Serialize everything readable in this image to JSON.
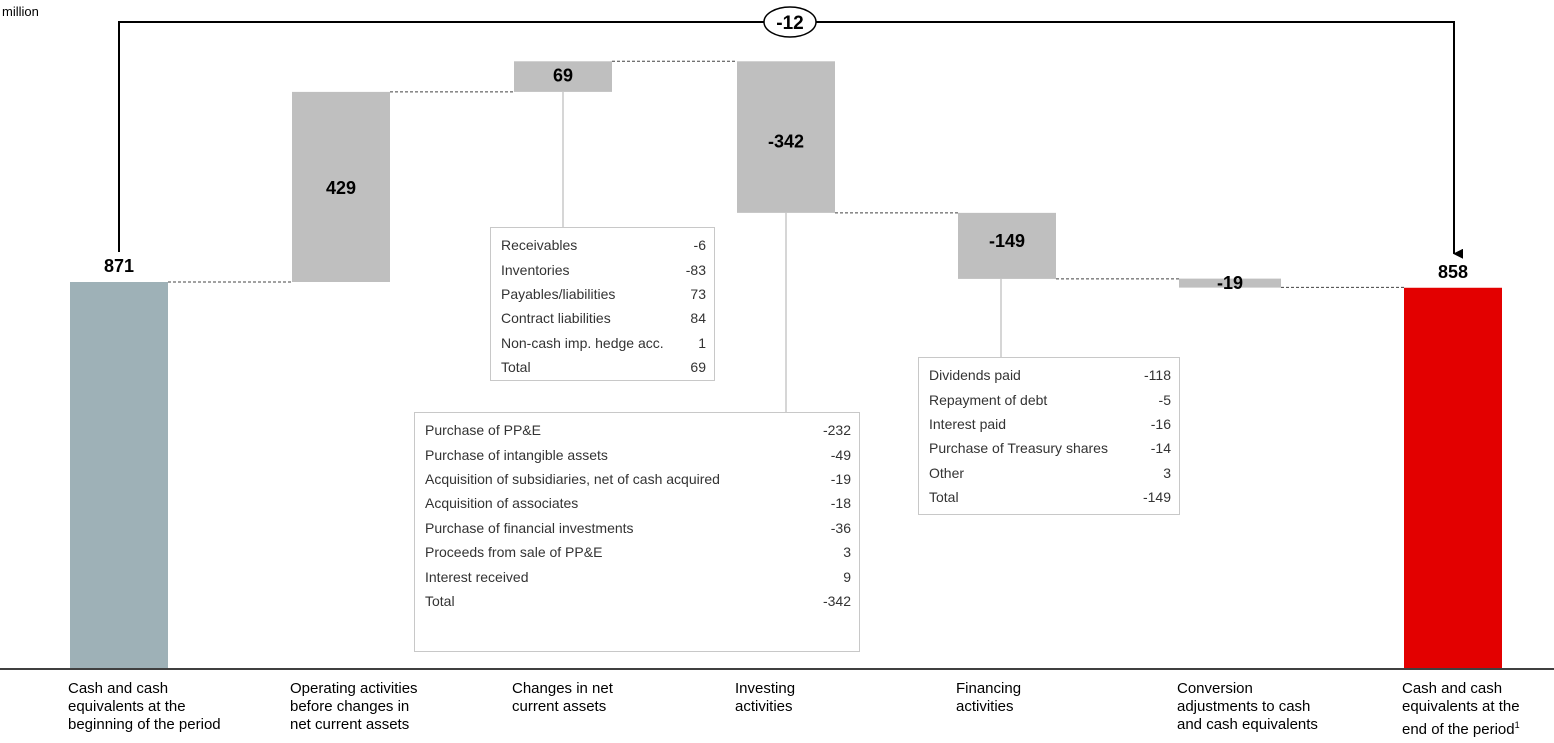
{
  "unit_label": "million",
  "chart_data": {
    "type": "waterfall",
    "title": "",
    "bars": [
      {
        "label": "Cash and cash equivalents at the beginning of the period",
        "label_lines": [
          "Cash and cash",
          "equivalents at the",
          "beginning of the period"
        ],
        "value": 871,
        "kind": "total",
        "color": "#9eb1b7"
      },
      {
        "label": "Operating activities before changes in net current assets",
        "label_lines": [
          "Operating activities",
          "before changes in",
          "net current assets"
        ],
        "value": 429,
        "kind": "delta",
        "color": "#bfbfbf"
      },
      {
        "label": "Changes in net current assets",
        "label_lines": [
          "Changes in net",
          "current assets"
        ],
        "value": 69,
        "kind": "delta",
        "color": "#bfbfbf"
      },
      {
        "label": "Investing activities",
        "label_lines": [
          "Investing",
          "activities"
        ],
        "value": -342,
        "kind": "delta",
        "color": "#bfbfbf"
      },
      {
        "label": "Financing activities",
        "label_lines": [
          "Financing",
          "activities"
        ],
        "value": -149,
        "kind": "delta",
        "color": "#bfbfbf"
      },
      {
        "label": "Conversion adjustments to cash and cash equivalents",
        "label_lines": [
          "Conversion",
          "adjustments to cash",
          "and cash equivalents"
        ],
        "value": -19,
        "kind": "delta",
        "color": "#bfbfbf"
      },
      {
        "label": "Cash and cash equivalents at the end of the period",
        "label_lines": [
          "Cash and cash",
          "equivalents at the",
          "end of the period"
        ],
        "footnote": "1",
        "value": 858,
        "kind": "total",
        "color": "#e30000"
      }
    ],
    "net_change": {
      "value": "-12"
    },
    "details": {
      "net_current_assets": [
        {
          "label": "Receivables",
          "value": "-6"
        },
        {
          "label": "Inventories",
          "value": "-83"
        },
        {
          "label": "Payables/liabilities",
          "value": "73"
        },
        {
          "label": "Contract liabilities",
          "value": "84"
        },
        {
          "label": "Non-cash imp. hedge acc.",
          "value": "1"
        },
        {
          "label": "Total",
          "value": "69"
        }
      ],
      "investing": [
        {
          "label": "Purchase of PP&E",
          "value": "-232"
        },
        {
          "label": "Purchase of intangible assets",
          "value": "-49"
        },
        {
          "label": "Acquisition of subsidiaries, net of cash acquired",
          "value": "-19"
        },
        {
          "label": "Acquisition of associates",
          "value": "-18"
        },
        {
          "label": "Purchase of financial investments",
          "value": "-36"
        },
        {
          "label": "Proceeds from sale of PP&E",
          "value": "3"
        },
        {
          "label": "Interest received",
          "value": "9"
        },
        {
          "label": "Total",
          "value": "-342"
        }
      ],
      "financing": [
        {
          "label": "Dividends paid",
          "value": "-118"
        },
        {
          "label": "Repayment of debt",
          "value": "-5"
        },
        {
          "label": "Interest paid",
          "value": "-16"
        },
        {
          "label": "Purchase of Treasury shares",
          "value": "-14"
        },
        {
          "label": "Other",
          "value": "3"
        },
        {
          "label": "Total",
          "value": "-149"
        }
      ]
    }
  }
}
